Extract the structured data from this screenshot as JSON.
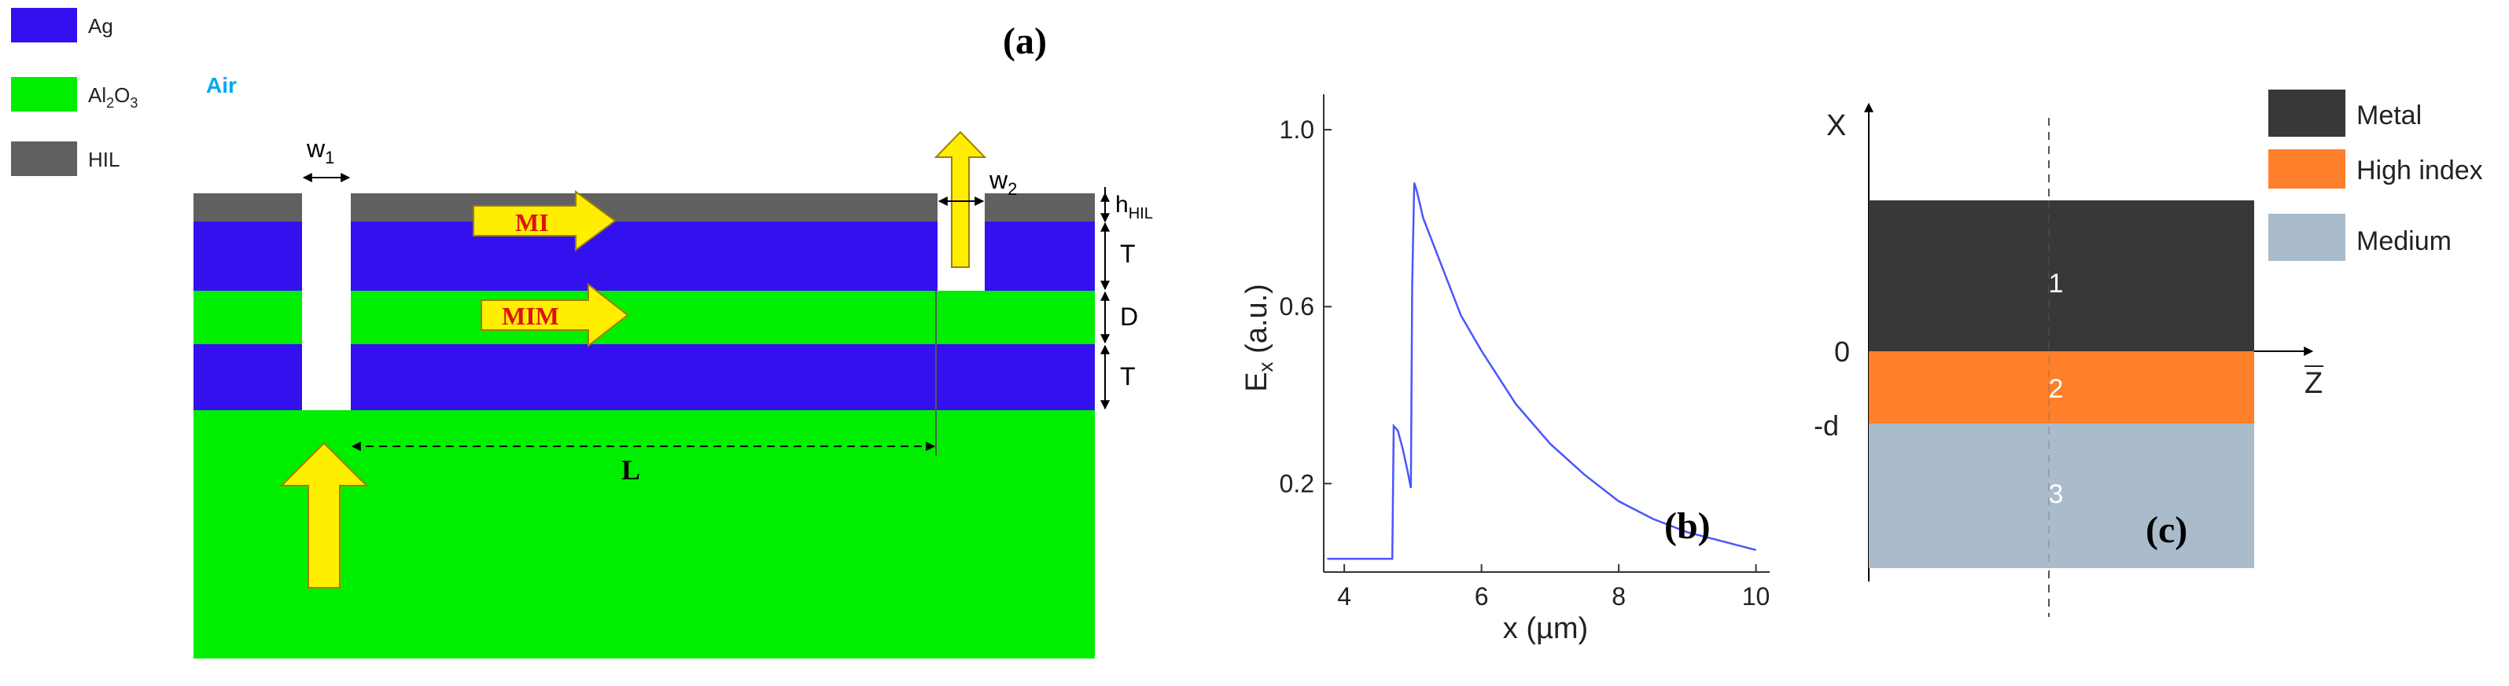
{
  "panel_a": {
    "label": "(a)",
    "legend": [
      {
        "name": "Ag",
        "color": "#3311ee"
      },
      {
        "name": "Al",
        "sub1": "2",
        "mid": "O",
        "sub2": "3",
        "color": "#00ee00"
      },
      {
        "name": "HIL",
        "color": "#606060"
      }
    ],
    "air_label": "Air",
    "w1": {
      "base": "w",
      "sub": "1"
    },
    "w2": {
      "base": "w",
      "sub": "2"
    },
    "h_hil": {
      "base": "h",
      "sub": "HIL"
    },
    "T_top": "T",
    "D": "D",
    "T_bottom": "T",
    "L": "L",
    "MI": "MI",
    "MIM": "MIM",
    "colors": {
      "ag": "#3311ee",
      "al2o3": "#00ee00",
      "hil": "#606060",
      "arrow": "#ffee00",
      "arrow_text": "#e01010",
      "air": "#00aaee"
    }
  },
  "panel_b": {
    "label": "(b)",
    "ylabel": {
      "base": "E",
      "sub": "x",
      "rest": " (a.u.)"
    },
    "xlabel": "x (µm)",
    "line_color": "#4b55ff"
  },
  "panel_c": {
    "label": "(c)",
    "legend": [
      {
        "name": "Metal",
        "color": "#383838"
      },
      {
        "name": "High index",
        "color": "#ff7f2a"
      },
      {
        "name": "Medium",
        "color": "#aabbcc"
      }
    ],
    "x_axis": "X",
    "z_axis": "Z",
    "zero": "0",
    "minus_d": "-d",
    "regions": [
      "1",
      "2",
      "3"
    ]
  },
  "chart_data": {
    "type": "line",
    "title": "",
    "xlabel": "x (µm)",
    "ylabel": "Ex (a.u.)",
    "xlim": [
      3.7,
      10.2
    ],
    "ylim": [
      0.0,
      1.08
    ],
    "xticks": [
      4,
      6,
      8,
      10
    ],
    "yticks": [
      0.2,
      0.6,
      1.0
    ],
    "series": [
      {
        "name": "Ex",
        "x": [
          3.75,
          4.7,
          4.72,
          4.78,
          4.85,
          4.92,
          4.97,
          4.99,
          5.02,
          5.06,
          5.15,
          5.3,
          5.5,
          5.7,
          6.0,
          6.5,
          7.0,
          7.5,
          8.0,
          8.5,
          9.0,
          9.5,
          10.0
        ],
        "y": [
          0.03,
          0.03,
          0.33,
          0.32,
          0.28,
          0.23,
          0.19,
          0.65,
          0.88,
          0.86,
          0.8,
          0.74,
          0.66,
          0.58,
          0.5,
          0.38,
          0.29,
          0.22,
          0.16,
          0.12,
          0.09,
          0.07,
          0.05
        ]
      }
    ]
  }
}
